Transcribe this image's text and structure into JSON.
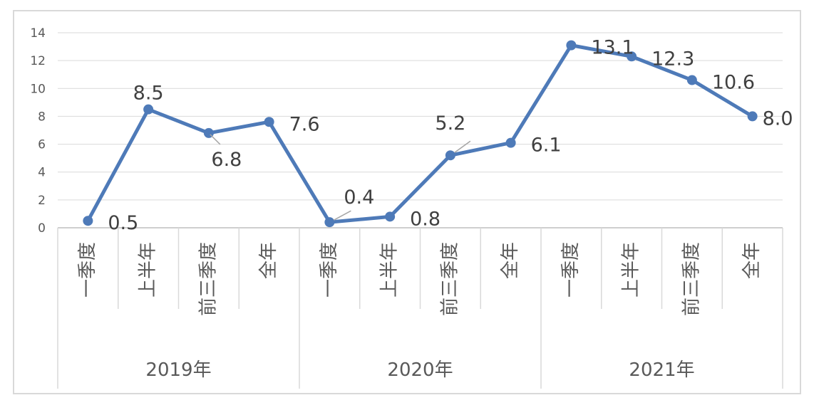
{
  "chart_data": {
    "type": "line",
    "title": "",
    "xlabel": "",
    "ylabel": "",
    "ylim": [
      0,
      14
    ],
    "yticks": [
      0,
      2,
      4,
      6,
      8,
      10,
      12,
      14
    ],
    "ytick_labels": [
      "0",
      "2",
      "4",
      "6",
      "8",
      "10",
      "12",
      "14"
    ],
    "grid": true,
    "legend": "none",
    "groups": [
      {
        "label": "2019年",
        "categories": [
          "一季度",
          "上半年",
          "前三季度",
          "全年"
        ]
      },
      {
        "label": "2020年",
        "categories": [
          "一季度",
          "上半年",
          "前三季度",
          "全年"
        ]
      },
      {
        "label": "2021年",
        "categories": [
          "一季度",
          "上半年",
          "前三季度",
          "全年"
        ]
      }
    ],
    "series": [
      {
        "color": "#4e7ab8",
        "values": [
          0.5,
          8.5,
          6.8,
          7.6,
          0.4,
          0.8,
          5.2,
          6.1,
          13.1,
          12.3,
          10.6,
          8.0
        ],
        "labels": [
          "0.5",
          "8.5",
          "6.8",
          "7.6",
          "0.4",
          "0.8",
          "5.2",
          "6.1",
          "13.1",
          "12.3",
          "10.6",
          "8.0"
        ]
      }
    ]
  }
}
